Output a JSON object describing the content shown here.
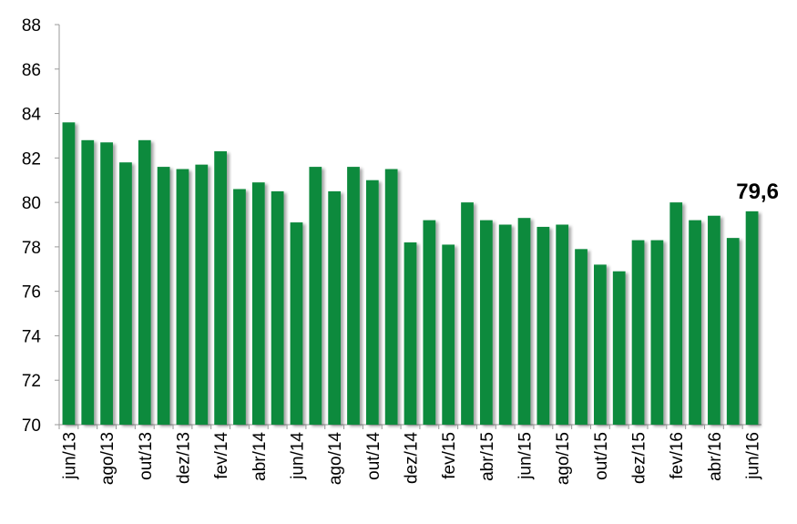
{
  "chart_data": {
    "type": "bar",
    "categories": [
      "jun/13",
      null,
      "ago/13",
      null,
      "out/13",
      null,
      "dez/13",
      null,
      "fev/14",
      null,
      "abr/14",
      null,
      "jun/14",
      null,
      "ago/14",
      null,
      "out/14",
      null,
      "dez/14",
      null,
      "fev/15",
      null,
      "abr/15",
      null,
      "jun/15",
      null,
      "ago/15",
      null,
      "out/15",
      null,
      "dez/15",
      null,
      "fev/16",
      null,
      "abr/16",
      null,
      "jun/16"
    ],
    "values": [
      83.6,
      82.8,
      82.7,
      81.8,
      82.8,
      81.6,
      81.5,
      81.7,
      82.3,
      80.6,
      80.9,
      80.5,
      79.1,
      81.6,
      80.5,
      81.6,
      81.0,
      81.5,
      78.2,
      79.2,
      78.1,
      80.0,
      79.2,
      79.0,
      79.3,
      78.9,
      79.0,
      77.9,
      77.2,
      76.9,
      78.3,
      78.3,
      80.0,
      79.2,
      79.4,
      78.4,
      79.6
    ],
    "value_labels": [
      null,
      null,
      null,
      null,
      null,
      null,
      null,
      null,
      null,
      null,
      null,
      null,
      null,
      null,
      null,
      null,
      null,
      null,
      null,
      null,
      null,
      null,
      null,
      null,
      null,
      null,
      null,
      null,
      null,
      null,
      null,
      null,
      null,
      null,
      null,
      null,
      "79,6"
    ],
    "color": "#0b8a3e",
    "ylim": [
      70,
      88
    ],
    "yticks": [
      70,
      72,
      74,
      76,
      78,
      80,
      82,
      84,
      86,
      88
    ],
    "grid": false
  }
}
